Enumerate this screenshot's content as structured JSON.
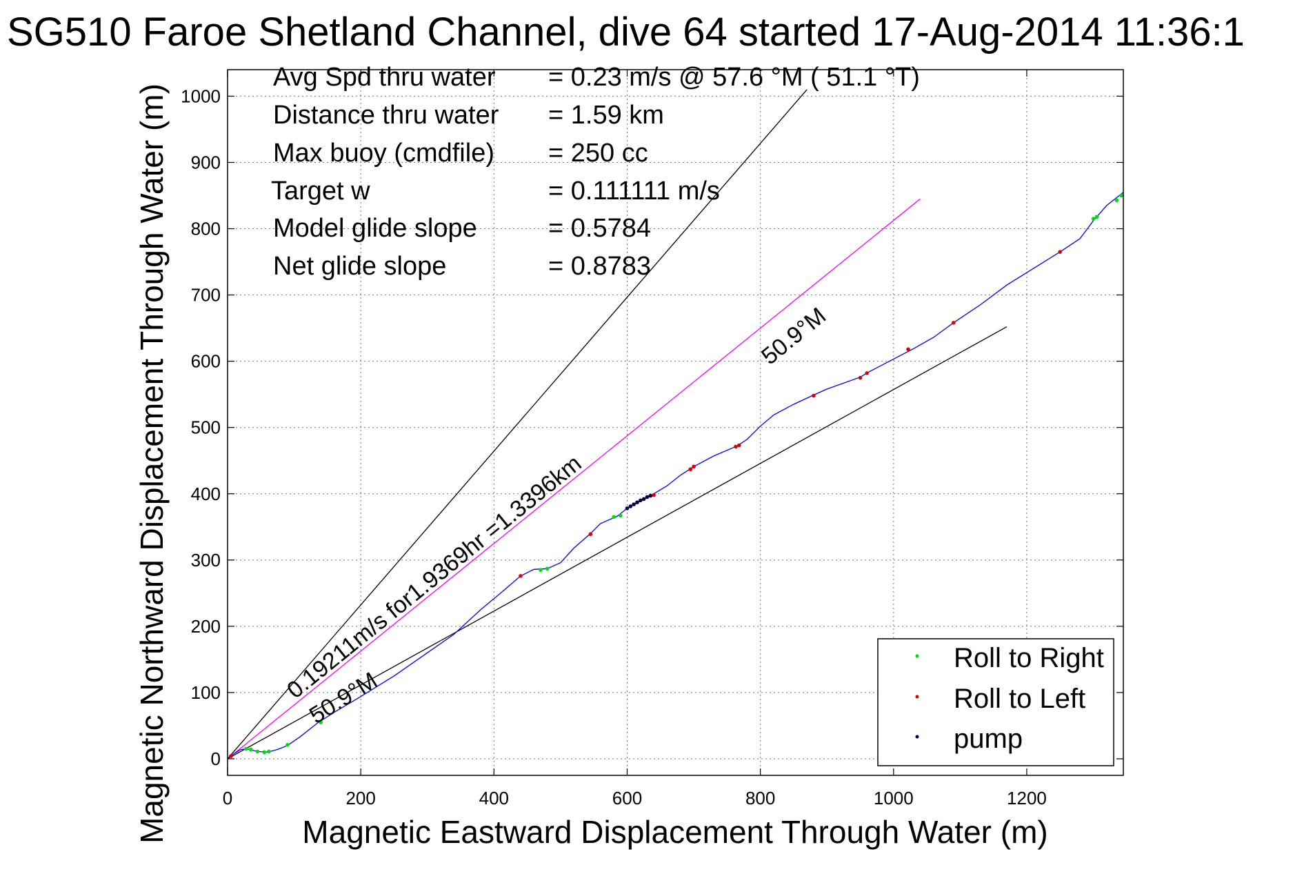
{
  "chart_data": {
    "type": "line",
    "title": "SG510 Faroe Shetland Channel, dive 64 started 17-Aug-2014 11:36:1",
    "xlabel": "Magnetic Eastward Displacement Through Water (m)",
    "ylabel": "Magnetic Northward Displacement Through Water (m)",
    "xlim": [
      0,
      1345
    ],
    "ylim": [
      -25,
      1040
    ],
    "x_ticks": [
      0,
      200,
      400,
      600,
      800,
      1000,
      1200
    ],
    "y_ticks": [
      0,
      100,
      200,
      300,
      400,
      500,
      600,
      700,
      800,
      900,
      1000
    ],
    "grid": true,
    "legend_position": "bottom-right",
    "info_lines": [
      {
        "label": "Avg Spd thru water",
        "value": "=  0.23 m/s @  57.6 °M ( 51.1 °T)"
      },
      {
        "label": "Distance thru water",
        "value": "=  1.59 km"
      },
      {
        "label": "Max buoy (cmdfile)",
        "value": "= 250 cc"
      },
      {
        "label": "Target w",
        "value": "= 0.111111 m/s"
      },
      {
        "label": "Model glide slope",
        "value": "= 0.5784"
      },
      {
        "label": "Net glide slope",
        "value": "= 0.8783"
      }
    ],
    "annotations": {
      "current_label": "0.19211m/s for1.9369hr =1.3396km",
      "heading_label_upper": "50.9°M",
      "heading_label_lower": "50.9°M"
    },
    "reference_lines": [
      {
        "x": [
          0,
          870
        ],
        "y": [
          0,
          1010
        ],
        "color": "#000000"
      },
      {
        "x": [
          0,
          1040
        ],
        "y": [
          0,
          845
        ],
        "color": "#ff00ff"
      },
      {
        "x": [
          0,
          1170
        ],
        "y": [
          0,
          652
        ],
        "color": "#000000"
      }
    ],
    "track": {
      "color": "#0000ff",
      "x": [
        0,
        10,
        20,
        30,
        45,
        60,
        75,
        90,
        110,
        135,
        160,
        200,
        250,
        300,
        340,
        380,
        410,
        440,
        460,
        480,
        500,
        520,
        545,
        560,
        585,
        600,
        640,
        660,
        680,
        700,
        730,
        765,
        780,
        800,
        820,
        850,
        880,
        900,
        950,
        965,
        990,
        1030,
        1060,
        1090,
        1130,
        1170,
        1210,
        1250,
        1280,
        1300,
        1320,
        1345
      ],
      "y": [
        0,
        8,
        14,
        15,
        11,
        10,
        14,
        20,
        34,
        54,
        70,
        94,
        125,
        160,
        188,
        225,
        250,
        276,
        286,
        287,
        296,
        318,
        340,
        355,
        366,
        378,
        400,
        412,
        428,
        441,
        457,
        472,
        482,
        502,
        519,
        535,
        549,
        558,
        576,
        585,
        598,
        619,
        636,
        658,
        685,
        715,
        740,
        765,
        785,
        812,
        835,
        855
      ]
    },
    "roll_right": {
      "color": "#00dd00",
      "x": [
        28,
        35,
        45,
        55,
        62,
        90,
        140,
        470,
        480,
        580,
        590,
        1300,
        1305,
        1335,
        1342
      ],
      "y": [
        15,
        14,
        11,
        10,
        11,
        21,
        55,
        285,
        287,
        365,
        367,
        815,
        818,
        843,
        850
      ]
    },
    "roll_left": {
      "color": "#dd0000",
      "x": [
        5,
        440,
        545,
        640,
        695,
        700,
        763,
        768,
        880,
        950,
        960,
        1022,
        1090,
        1250
      ],
      "y": [
        4,
        276,
        339,
        398,
        437,
        441,
        471,
        473,
        548,
        575,
        582,
        618,
        658,
        765
      ]
    },
    "pump": {
      "color": "#000044",
      "x": [
        600,
        605,
        610,
        615,
        620,
        625,
        630,
        635
      ],
      "y": [
        378,
        381,
        384,
        387,
        390,
        392,
        395,
        397
      ]
    },
    "legend": [
      {
        "label": "Roll to Right",
        "color": "#00dd00"
      },
      {
        "label": "Roll to Left",
        "color": "#dd0000"
      },
      {
        "label": "pump",
        "color": "#000044"
      }
    ]
  }
}
